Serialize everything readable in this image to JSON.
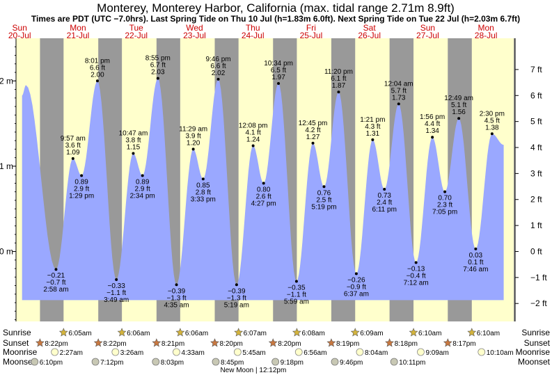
{
  "chart_data": {
    "type": "area",
    "title": "Monterey, Monterey Harbor, California (max. tidal range 2.71m 8.9ft)",
    "subtitle": "Times are PDT (UTC −7.0hrs). Last Spring Tide on Thu 10 Jul (h=1.83m 6.0ft). Next Spring Tide on Tue 22 Jul (h=2.03m 6.7ft)",
    "x_unit": "hours since Sun 20-Jul 00:00 (PDT)",
    "x_range": [
      10.5,
      216
    ],
    "ylim_m": [
      -0.82,
      2.5
    ],
    "left_axis_ticks": [
      {
        "value": 2,
        "label": "2 m"
      },
      {
        "value": 1,
        "label": "1 m"
      },
      {
        "value": 0,
        "label": "0 m"
      }
    ],
    "right_axis_ticks": [
      {
        "value": 7,
        "label": "7 ft"
      },
      {
        "value": 6,
        "label": "6 ft"
      },
      {
        "value": 5,
        "label": "5 ft"
      },
      {
        "value": 4,
        "label": "4 ft"
      },
      {
        "value": 3,
        "label": "3 ft"
      },
      {
        "value": 2,
        "label": "2 ft"
      },
      {
        "value": 1,
        "label": "1 ft"
      },
      {
        "value": 0,
        "label": "0 ft"
      },
      {
        "value": -1,
        "label": "−1 ft"
      },
      {
        "value": -2,
        "label": "−2 ft"
      }
    ],
    "days": [
      {
        "weekday": "Sun",
        "date": "20-Jul",
        "noon": 12
      },
      {
        "weekday": "Mon",
        "date": "21-Jul",
        "noon": 36
      },
      {
        "weekday": "Tue",
        "date": "22-Jul",
        "noon": 60
      },
      {
        "weekday": "Wed",
        "date": "23-Jul",
        "noon": 84
      },
      {
        "weekday": "Thu",
        "date": "24-Jul",
        "noon": 108
      },
      {
        "weekday": "Fri",
        "date": "25-Jul",
        "noon": 132
      },
      {
        "weekday": "Sat",
        "date": "26-Jul",
        "noon": 156
      },
      {
        "weekday": "Sun",
        "date": "27-Jul",
        "noon": 180
      },
      {
        "weekday": "Mon",
        "date": "28-Jul",
        "noon": 204
      }
    ],
    "nights": [
      [
        20.37,
        30.08
      ],
      [
        44.37,
        54.1
      ],
      [
        68.35,
        78.1
      ],
      [
        92.33,
        102.12
      ],
      [
        116.33,
        126.13
      ],
      [
        140.32,
        150.15
      ],
      [
        164.3,
        174.17
      ],
      [
        188.28,
        198.17
      ]
    ],
    "boundary_points": [
      {
        "t": 13.0,
        "h": 1.83
      },
      {
        "t": 211.3,
        "h": 1.25
      }
    ],
    "extremes": [
      {
        "t": 14.6,
        "h": 1.95,
        "labeled": false
      },
      {
        "t": 26.97,
        "h": -0.21,
        "kind": "low",
        "time": "2:58 am",
        "ft": "−0.7 ft",
        "m": "−0.21 m"
      },
      {
        "t": 33.95,
        "h": 1.09,
        "kind": "high",
        "time": "9:57 am",
        "ft": "3.6 ft",
        "m": "1.09 m"
      },
      {
        "t": 37.48,
        "h": 0.89,
        "kind": "low",
        "time": "1:29 pm",
        "ft": "2.9 ft",
        "m": "0.89 m"
      },
      {
        "t": 44.02,
        "h": 2.0,
        "kind": "high",
        "time": "8:01 pm",
        "ft": "6.6 ft",
        "m": "2.00 m"
      },
      {
        "t": 51.82,
        "h": -0.33,
        "kind": "low",
        "time": "3:49 am",
        "ft": "−1.1 ft",
        "m": "−0.33 m"
      },
      {
        "t": 58.78,
        "h": 1.15,
        "kind": "high",
        "time": "10:47 am",
        "ft": "3.8 ft",
        "m": "1.15 m"
      },
      {
        "t": 62.57,
        "h": 0.89,
        "kind": "low",
        "time": "2:34 pm",
        "ft": "2.9 ft",
        "m": "0.89 m"
      },
      {
        "t": 68.92,
        "h": 2.03,
        "kind": "high",
        "time": "8:55 pm",
        "ft": "6.7 ft",
        "m": "2.03 m"
      },
      {
        "t": 76.58,
        "h": -0.39,
        "kind": "low",
        "time": "4:35 am",
        "ft": "−1.3 ft",
        "m": "−0.39 m"
      },
      {
        "t": 83.48,
        "h": 1.2,
        "kind": "high",
        "time": "11:29 am",
        "ft": "3.9 ft",
        "m": "1.20 m"
      },
      {
        "t": 87.55,
        "h": 0.85,
        "kind": "low",
        "time": "3:33 pm",
        "ft": "2.8 ft",
        "m": "0.85 m"
      },
      {
        "t": 93.77,
        "h": 2.02,
        "kind": "high",
        "time": "9:46 pm",
        "ft": "6.6 ft",
        "m": "2.02 m"
      },
      {
        "t": 101.32,
        "h": -0.39,
        "kind": "low",
        "time": "5:19 am",
        "ft": "−1.3 ft",
        "m": "−0.39 m"
      },
      {
        "t": 108.13,
        "h": 1.24,
        "kind": "high",
        "time": "12:08 pm",
        "ft": "4.1 ft",
        "m": "1.24 m"
      },
      {
        "t": 112.45,
        "h": 0.8,
        "kind": "low",
        "time": "4:27 pm",
        "ft": "2.6 ft",
        "m": "0.80 m"
      },
      {
        "t": 118.57,
        "h": 1.97,
        "kind": "high",
        "time": "10:34 pm",
        "ft": "6.5 ft",
        "m": "1.97 m"
      },
      {
        "t": 125.98,
        "h": -0.35,
        "kind": "low",
        "time": "5:59 am",
        "ft": "−1.1 ft",
        "m": "−0.35 m"
      },
      {
        "t": 132.75,
        "h": 1.27,
        "kind": "high",
        "time": "12:45 pm",
        "ft": "4.2 ft",
        "m": "1.27 m"
      },
      {
        "t": 137.32,
        "h": 0.76,
        "kind": "low",
        "time": "5:19 pm",
        "ft": "2.5 ft",
        "m": "0.76 m"
      },
      {
        "t": 143.33,
        "h": 1.87,
        "kind": "high",
        "time": "11:20 pm",
        "ft": "6.1 ft",
        "m": "1.87 m"
      },
      {
        "t": 150.62,
        "h": -0.26,
        "kind": "low",
        "time": "6:37 am",
        "ft": "−0.9 ft",
        "m": "−0.26 m"
      },
      {
        "t": 157.35,
        "h": 1.31,
        "kind": "high",
        "time": "1:21 pm",
        "ft": "4.3 ft",
        "m": "1.31 m"
      },
      {
        "t": 162.18,
        "h": 0.73,
        "kind": "low",
        "time": "6:11 pm",
        "ft": "2.4 ft",
        "m": "0.73 m"
      },
      {
        "t": 168.07,
        "h": 1.73,
        "kind": "high",
        "time": "12:04 am",
        "ft": "5.7 ft",
        "m": "1.73 m"
      },
      {
        "t": 175.2,
        "h": -0.13,
        "kind": "low",
        "time": "7:12 am",
        "ft": "−0.4 ft",
        "m": "−0.13 m"
      },
      {
        "t": 181.93,
        "h": 1.34,
        "kind": "high",
        "time": "1:56 pm",
        "ft": "4.4 ft",
        "m": "1.34 m"
      },
      {
        "t": 187.08,
        "h": 0.7,
        "kind": "low",
        "time": "7:05 pm",
        "ft": "2.3 ft",
        "m": "0.70 m"
      },
      {
        "t": 192.82,
        "h": 1.56,
        "kind": "high",
        "time": "12:49 am",
        "ft": "5.1 ft",
        "m": "1.56 m"
      },
      {
        "t": 199.77,
        "h": 0.03,
        "kind": "low",
        "time": "7:46 am",
        "ft": "0.1 ft",
        "m": "0.03 m"
      },
      {
        "t": 206.5,
        "h": 1.38,
        "kind": "high",
        "time": "2:30 pm",
        "ft": "4.5 ft",
        "m": "1.38 m"
      }
    ],
    "astro_rows": {
      "labels": [
        "Sunrise",
        "Sunset",
        "Moonrise",
        "Moonset"
      ],
      "sunrise": [
        {
          "t": 30.08,
          "label": "6:05am"
        },
        {
          "t": 54.1,
          "label": "6:06am"
        },
        {
          "t": 78.1,
          "label": "6:06am"
        },
        {
          "t": 102.12,
          "label": "6:07am"
        },
        {
          "t": 126.13,
          "label": "6:08am"
        },
        {
          "t": 150.15,
          "label": "6:09am"
        },
        {
          "t": 174.17,
          "label": "6:10am"
        },
        {
          "t": 198.17,
          "label": "6:10am"
        }
      ],
      "sunset": [
        {
          "t": 20.37,
          "label": "8:22pm"
        },
        {
          "t": 44.37,
          "label": "8:22pm"
        },
        {
          "t": 68.35,
          "label": "8:21pm"
        },
        {
          "t": 92.33,
          "label": "8:20pm"
        },
        {
          "t": 116.33,
          "label": "8:20pm"
        },
        {
          "t": 140.32,
          "label": "8:19pm"
        },
        {
          "t": 164.3,
          "label": "8:18pm"
        },
        {
          "t": 188.28,
          "label": "8:17pm"
        }
      ],
      "moonrise": [
        {
          "t": 26.45,
          "label": "2:27am"
        },
        {
          "t": 51.43,
          "label": "3:26am"
        },
        {
          "t": 76.55,
          "label": "4:33am"
        },
        {
          "t": 101.75,
          "label": "5:45am"
        },
        {
          "t": 126.93,
          "label": "6:56am"
        },
        {
          "t": 152.07,
          "label": "8:04am"
        },
        {
          "t": 177.15,
          "label": "9:09am"
        },
        {
          "t": 202.17,
          "label": "10:10am"
        }
      ],
      "moonset": [
        {
          "t": 18.17,
          "label": "6:10pm"
        },
        {
          "t": 43.2,
          "label": "7:12pm"
        },
        {
          "t": 68.05,
          "label": "8:03pm"
        },
        {
          "t": 92.75,
          "label": "8:45pm"
        },
        {
          "t": 117.3,
          "label": "9:18pm"
        },
        {
          "t": 141.77,
          "label": "9:46pm"
        },
        {
          "t": 166.18,
          "label": "10:11pm"
        }
      ]
    },
    "moon_phase": {
      "t": 108.2,
      "label": "New Moon | 12:12pm"
    },
    "colors": {
      "day": "#ffffcc",
      "night": "#999999",
      "water": "#9aa8ff",
      "title": "#000000",
      "day_header": "#cc0000",
      "sun_star": "#d4b43c",
      "sunset_star": "#c87840",
      "moonrise": "#ffffcc",
      "moonset": "#c8c8b4"
    }
  }
}
